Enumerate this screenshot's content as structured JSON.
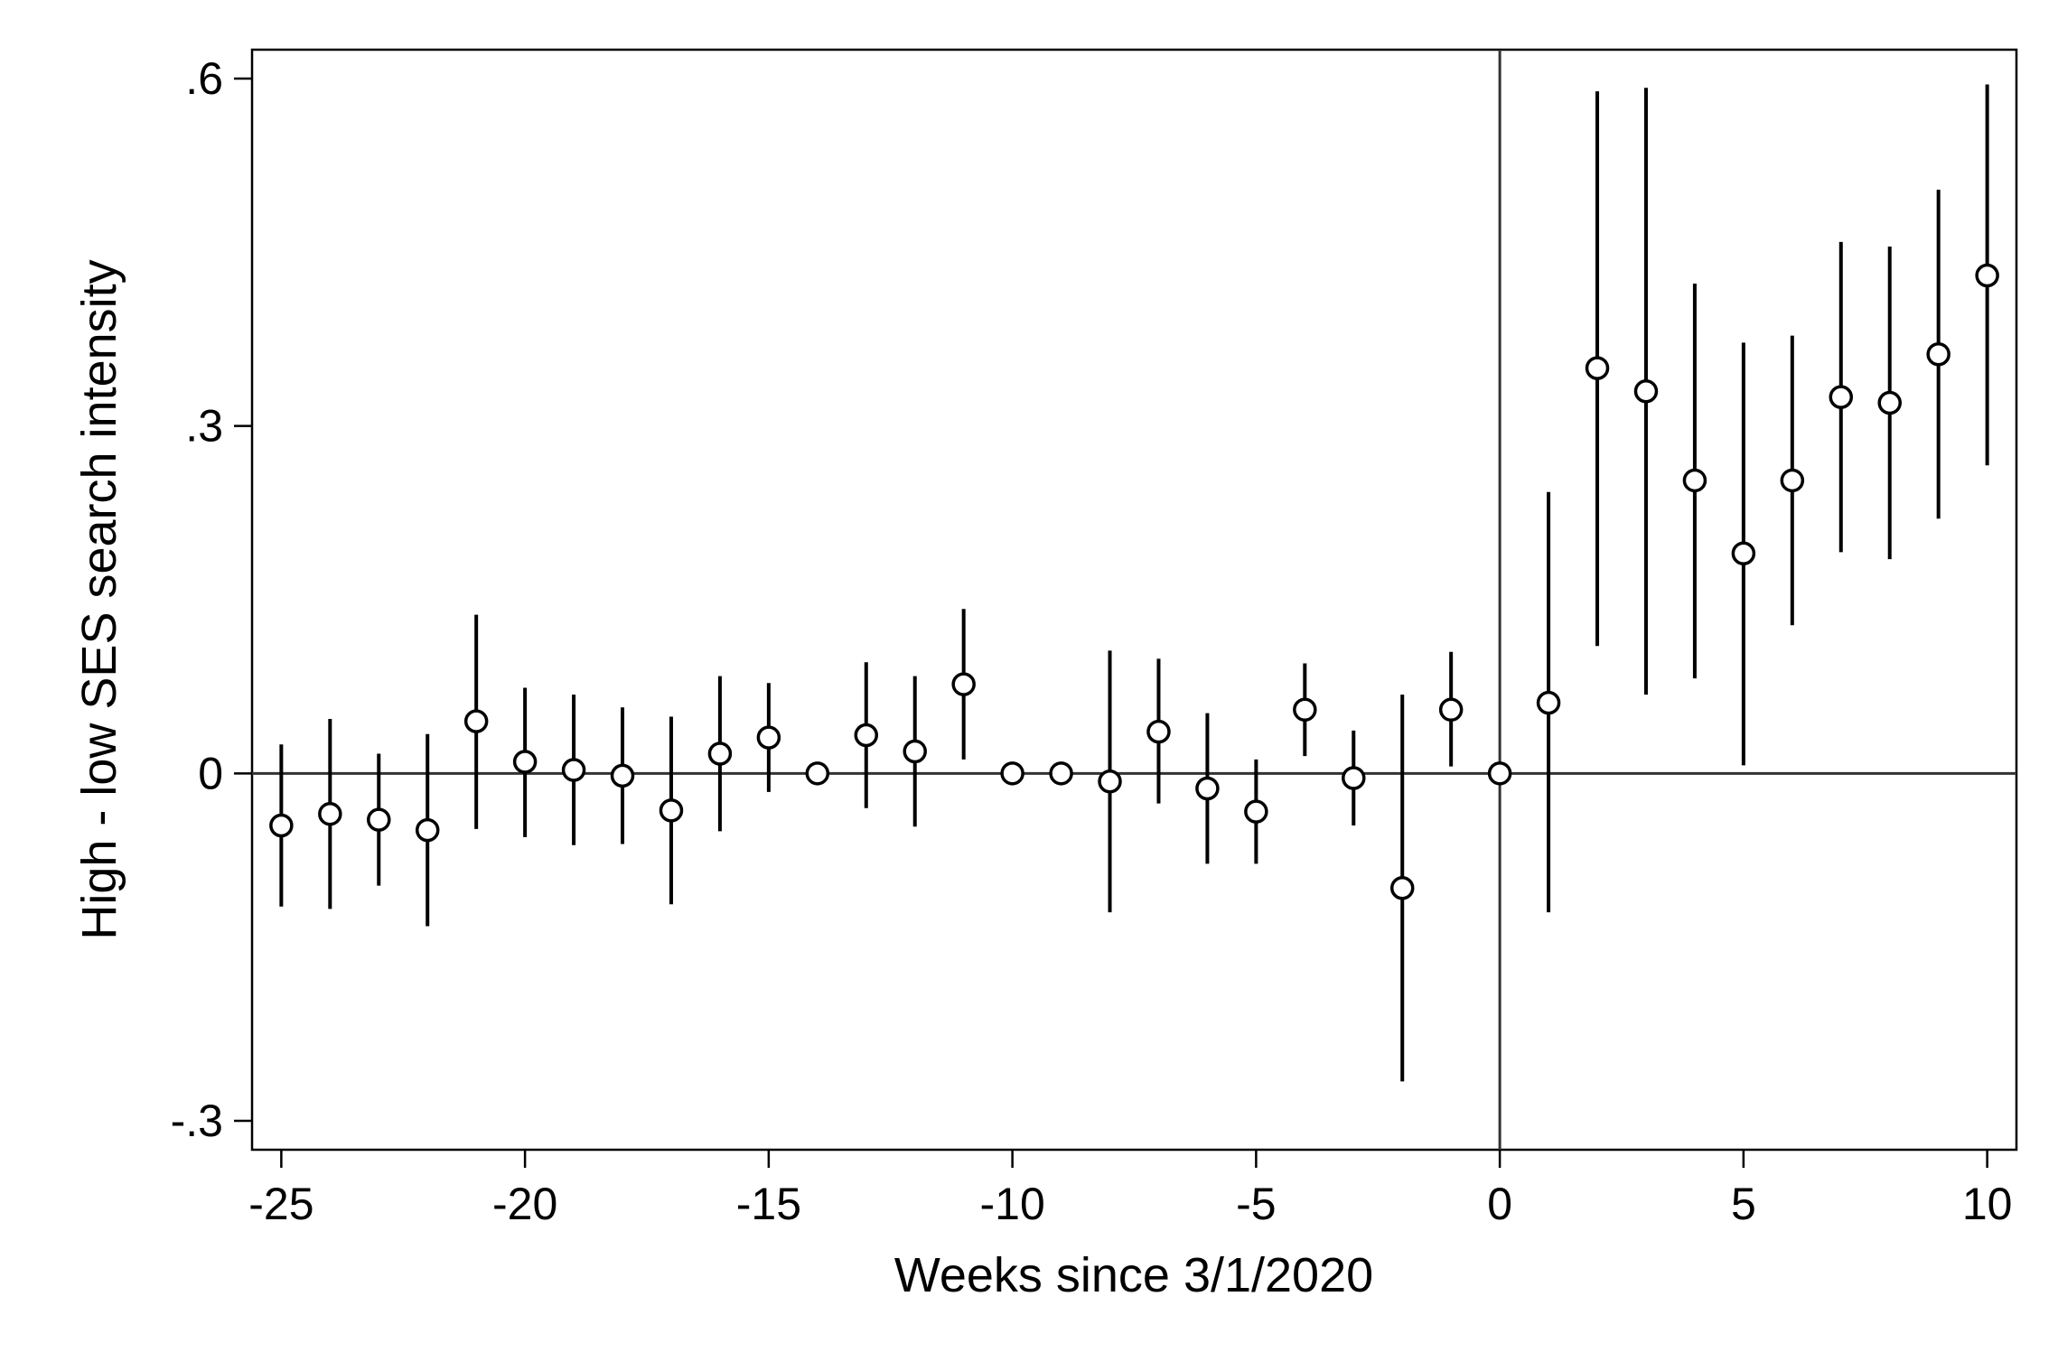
{
  "chart_data": {
    "type": "scatter",
    "title": "",
    "xlabel": "Weeks since 3/1/2020",
    "ylabel": "High - low SES search intensity",
    "xlim": [
      -25.6,
      10.6
    ],
    "ylim": [
      -0.325,
      0.625
    ],
    "x_ticks": [
      -25,
      -20,
      -15,
      -10,
      -5,
      0,
      5,
      10
    ],
    "x_tick_labels": [
      "-25",
      "-20",
      "-15",
      "-10",
      "-5",
      "0",
      "5",
      "10"
    ],
    "y_ticks": [
      -0.3,
      0,
      0.3,
      0.6
    ],
    "y_tick_labels": [
      "-.3",
      "0",
      ".3",
      ".6"
    ],
    "reference_lines": {
      "x": 0,
      "y": 0
    },
    "grid": false,
    "series": [
      {
        "name": "Estimate with CI",
        "points": [
          {
            "x": -25,
            "y": -0.045,
            "lo": -0.115,
            "hi": 0.025
          },
          {
            "x": -24,
            "y": -0.035,
            "lo": -0.117,
            "hi": 0.047
          },
          {
            "x": -23,
            "y": -0.04,
            "lo": -0.097,
            "hi": 0.017
          },
          {
            "x": -22,
            "y": -0.049,
            "lo": -0.132,
            "hi": 0.034
          },
          {
            "x": -21,
            "y": 0.045,
            "lo": -0.048,
            "hi": 0.137
          },
          {
            "x": -20,
            "y": 0.01,
            "lo": -0.055,
            "hi": 0.074
          },
          {
            "x": -19,
            "y": 0.003,
            "lo": -0.062,
            "hi": 0.068
          },
          {
            "x": -18,
            "y": -0.002,
            "lo": -0.061,
            "hi": 0.057
          },
          {
            "x": -17,
            "y": -0.032,
            "lo": -0.113,
            "hi": 0.049
          },
          {
            "x": -16,
            "y": 0.017,
            "lo": -0.05,
            "hi": 0.084
          },
          {
            "x": -15,
            "y": 0.031,
            "lo": -0.016,
            "hi": 0.078
          },
          {
            "x": -14,
            "y": 0.0,
            "lo": 0.0,
            "hi": 0.0
          },
          {
            "x": -13,
            "y": 0.033,
            "lo": -0.03,
            "hi": 0.096
          },
          {
            "x": -12,
            "y": 0.019,
            "lo": -0.046,
            "hi": 0.084
          },
          {
            "x": -11,
            "y": 0.077,
            "lo": 0.012,
            "hi": 0.142
          },
          {
            "x": -10,
            "y": 0.0,
            "lo": 0.0,
            "hi": 0.0
          },
          {
            "x": -9,
            "y": 0.0,
            "lo": 0.0,
            "hi": 0.0
          },
          {
            "x": -8,
            "y": -0.007,
            "lo": -0.12,
            "hi": 0.106
          },
          {
            "x": -7,
            "y": 0.036,
            "lo": -0.026,
            "hi": 0.099
          },
          {
            "x": -6,
            "y": -0.013,
            "lo": -0.078,
            "hi": 0.052
          },
          {
            "x": -5,
            "y": -0.033,
            "lo": -0.078,
            "hi": 0.012
          },
          {
            "x": -4,
            "y": 0.055,
            "lo": 0.015,
            "hi": 0.095
          },
          {
            "x": -3,
            "y": -0.004,
            "lo": -0.045,
            "hi": 0.037
          },
          {
            "x": -2,
            "y": -0.099,
            "lo": -0.266,
            "hi": 0.068
          },
          {
            "x": -1,
            "y": 0.055,
            "lo": 0.006,
            "hi": 0.105
          },
          {
            "x": 0,
            "y": 0.0,
            "lo": 0.0,
            "hi": 0.0
          },
          {
            "x": 1,
            "y": 0.061,
            "lo": -0.12,
            "hi": 0.243
          },
          {
            "x": 2,
            "y": 0.35,
            "lo": 0.11,
            "hi": 0.589
          },
          {
            "x": 3,
            "y": 0.33,
            "lo": 0.068,
            "hi": 0.592
          },
          {
            "x": 4,
            "y": 0.253,
            "lo": 0.082,
            "hi": 0.423
          },
          {
            "x": 5,
            "y": 0.19,
            "lo": 0.007,
            "hi": 0.372
          },
          {
            "x": 6,
            "y": 0.253,
            "lo": 0.128,
            "hi": 0.378
          },
          {
            "x": 7,
            "y": 0.325,
            "lo": 0.191,
            "hi": 0.459
          },
          {
            "x": 8,
            "y": 0.32,
            "lo": 0.185,
            "hi": 0.455
          },
          {
            "x": 9,
            "y": 0.362,
            "lo": 0.22,
            "hi": 0.504
          },
          {
            "x": 10,
            "y": 0.43,
            "lo": 0.266,
            "hi": 0.595
          }
        ]
      }
    ]
  }
}
